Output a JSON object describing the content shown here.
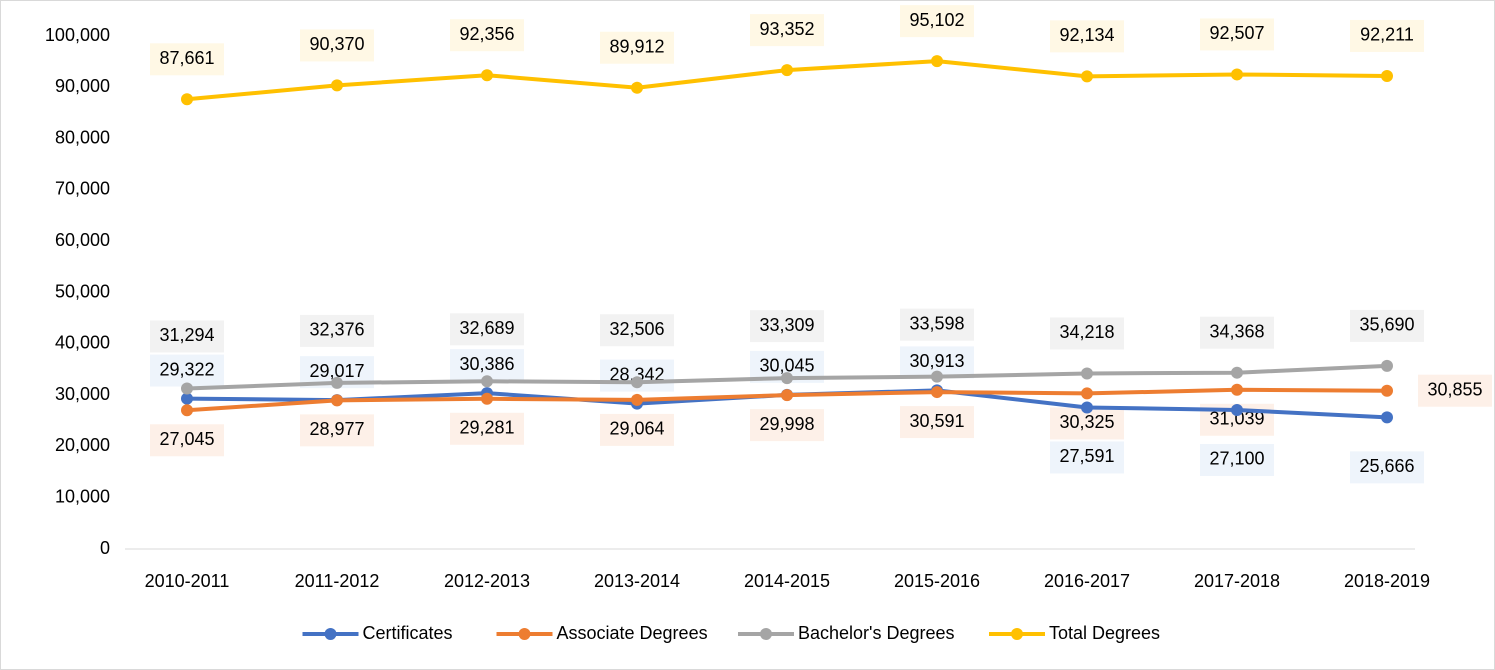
{
  "chart_data": {
    "type": "line",
    "categories": [
      "2010-2011",
      "2011-2012",
      "2012-2013",
      "2013-2014",
      "2014-2015",
      "2015-2016",
      "2016-2017",
      "2017-2018",
      "2018-2019"
    ],
    "series": [
      {
        "name": "Certificates",
        "color": "#4472c4",
        "values": [
          29322,
          29017,
          30386,
          28342,
          30045,
          30913,
          27591,
          27100,
          25666
        ],
        "value_labels": [
          "29,322",
          "29,017",
          "30,386",
          "28,342",
          "30,045",
          "30,913",
          "27,591",
          "27,100",
          "25,666"
        ]
      },
      {
        "name": "Associate Degrees",
        "color": "#ed7d31",
        "values": [
          27045,
          28977,
          29281,
          29064,
          29998,
          30591,
          30325,
          31039,
          30855
        ],
        "value_labels": [
          "27,045",
          "28,977",
          "29,281",
          "29,064",
          "29,998",
          "30,591",
          "30,325",
          "31,039",
          "30,855"
        ]
      },
      {
        "name": "Bachelor's Degrees",
        "color": "#a5a5a5",
        "values": [
          31294,
          32376,
          32689,
          32506,
          33309,
          33598,
          34218,
          34368,
          35690
        ],
        "value_labels": [
          "31,294",
          "32,376",
          "32,689",
          "32,506",
          "33,309",
          "33,598",
          "34,218",
          "34,368",
          "35,690"
        ]
      },
      {
        "name": "Total Degrees",
        "color": "#ffc000",
        "values": [
          87661,
          90370,
          92356,
          89912,
          93352,
          95102,
          92134,
          92507,
          92211
        ],
        "value_labels": [
          "87,661",
          "90,370",
          "92,356",
          "89,912",
          "93,352",
          "95,102",
          "92,134",
          "92,507",
          "92,211"
        ]
      }
    ],
    "ylim": [
      0,
      100000
    ],
    "yticks": [
      0,
      {
        "value": 10000,
        "label": "10,000"
      },
      {
        "value": 20000,
        "label": "20,000"
      },
      {
        "value": 30000,
        "label": "30,000"
      },
      {
        "value": 40000,
        "label": "40,000"
      },
      {
        "value": 50000,
        "label": "50,000"
      },
      {
        "value": 60000,
        "label": "60,000"
      },
      {
        "value": 70000,
        "label": "70,000"
      },
      {
        "value": 80000,
        "label": "80,000"
      },
      {
        "value": 90000,
        "label": "90,000"
      },
      {
        "value": 100000,
        "label": "100,000"
      }
    ],
    "grid": false,
    "legend": "bottom"
  }
}
